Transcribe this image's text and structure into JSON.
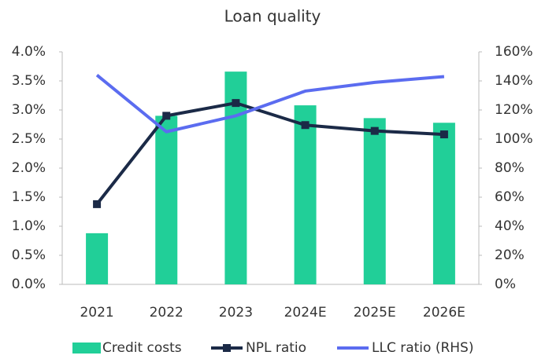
{
  "chart_data": {
    "type": "combo",
    "title": "Loan quality",
    "categories": [
      "2021",
      "2022",
      "2023",
      "2024E",
      "2025E",
      "2026E"
    ],
    "series": [
      {
        "name": "Credit costs",
        "type": "bar",
        "color": "#21cf98",
        "values": [
          0.88,
          2.9,
          3.66,
          3.08,
          2.86,
          2.78
        ]
      },
      {
        "name": "NPL ratio",
        "type": "line",
        "marker": "square",
        "color": "#1b2a47",
        "values": [
          1.38,
          2.9,
          3.12,
          2.74,
          2.64,
          2.58
        ]
      },
      {
        "name": "LLC ratio (RHS)",
        "type": "line",
        "axis": "y2",
        "color": "#5b6cf0",
        "values": [
          144,
          105,
          116,
          133,
          139,
          143
        ]
      }
    ],
    "ylim": [
      0,
      4
    ],
    "yticks": [
      {
        "value": 0,
        "label": "0.0%"
      },
      {
        "value": 0.5,
        "label": "0.5%"
      },
      {
        "value": 1,
        "label": "1.0%"
      },
      {
        "value": 1.5,
        "label": "1.5%"
      },
      {
        "value": 2,
        "label": "2.0%"
      },
      {
        "value": 2.5,
        "label": "2.5%"
      },
      {
        "value": 3,
        "label": "3.0%"
      },
      {
        "value": 3.5,
        "label": "3.5%"
      },
      {
        "value": 4,
        "label": "4.0%"
      }
    ],
    "y2lim": [
      0,
      160
    ],
    "y2ticks": [
      {
        "value": 0,
        "label": "0%"
      },
      {
        "value": 20,
        "label": "20%"
      },
      {
        "value": 40,
        "label": "40%"
      },
      {
        "value": 60,
        "label": "60%"
      },
      {
        "value": 80,
        "label": "80%"
      },
      {
        "value": 100,
        "label": "100%"
      },
      {
        "value": 120,
        "label": "120%"
      },
      {
        "value": 140,
        "label": "140%"
      },
      {
        "value": 160,
        "label": "160%"
      }
    ],
    "legend": "bottom"
  }
}
